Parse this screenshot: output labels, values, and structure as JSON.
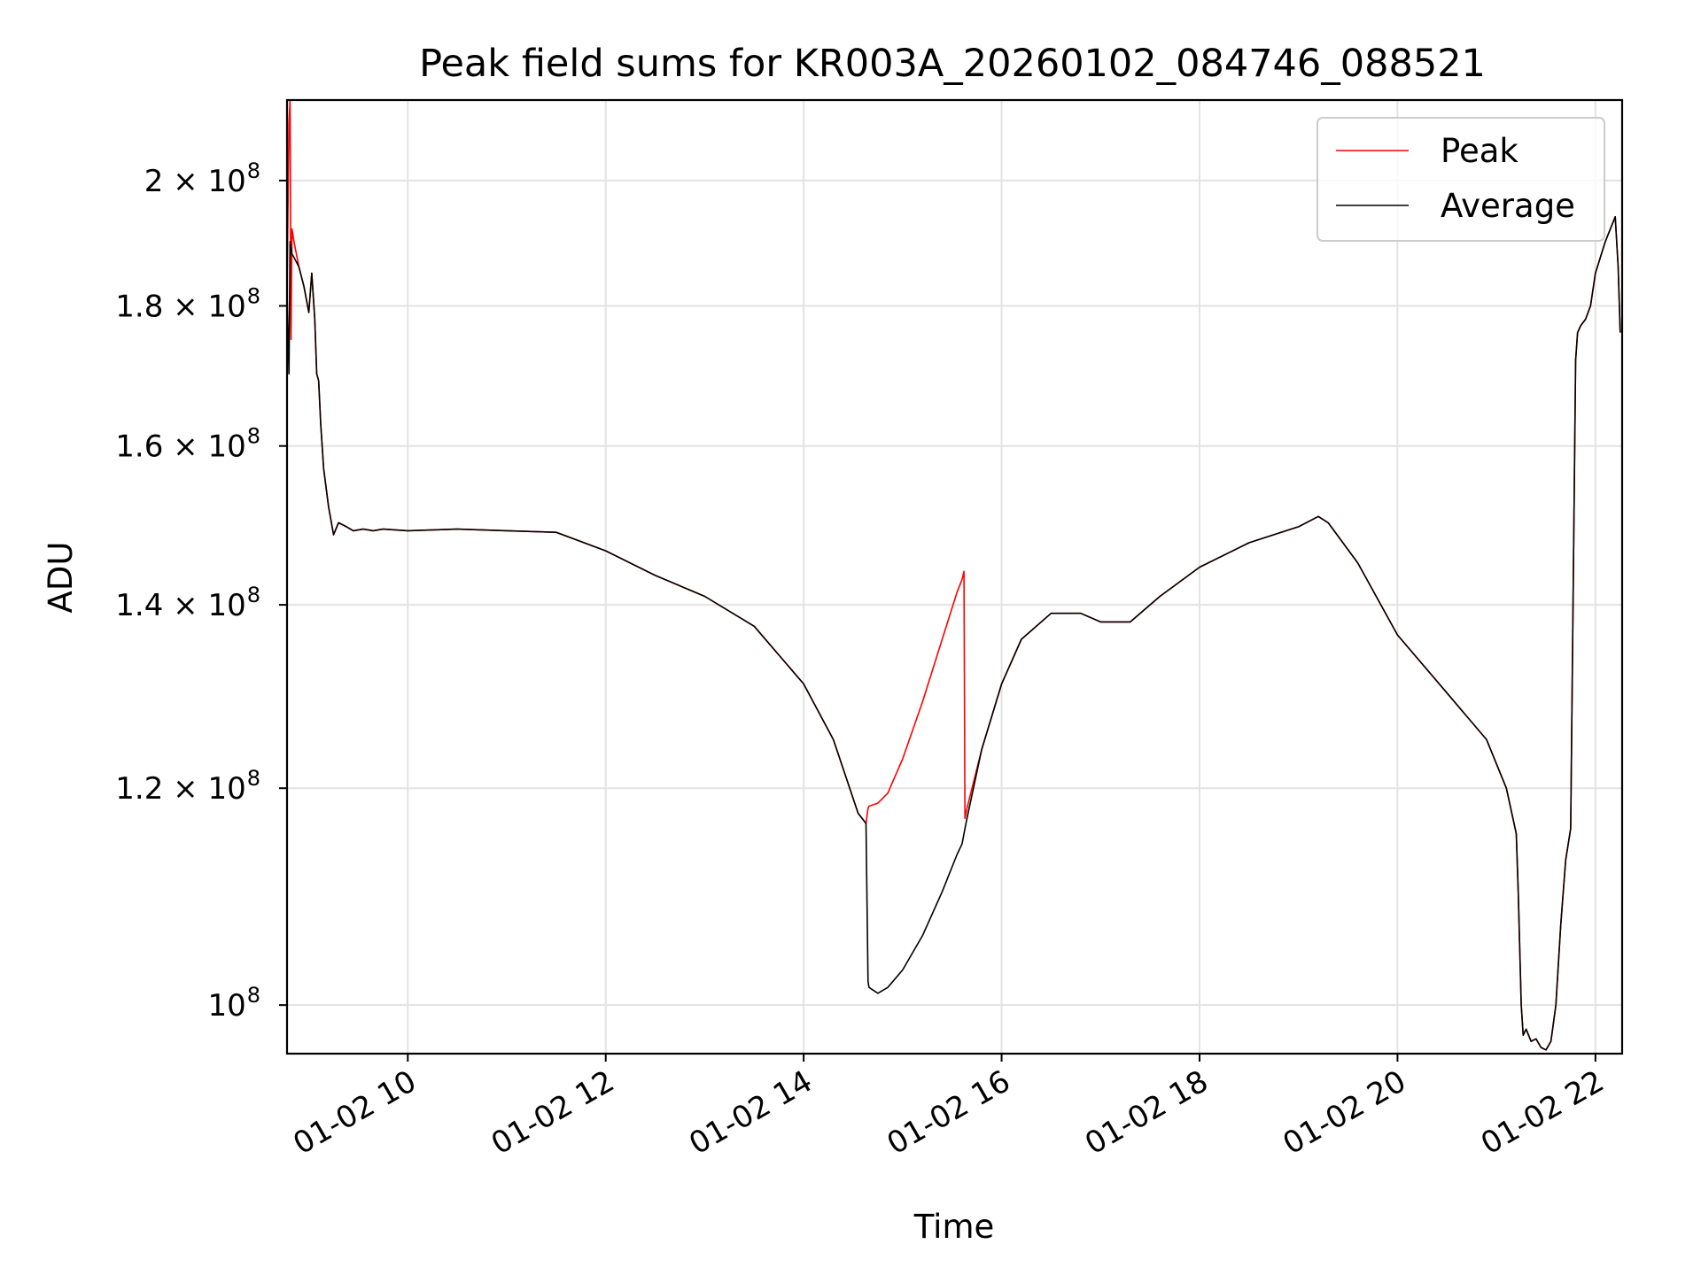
{
  "chart_data": {
    "type": "line",
    "title": "Peak field sums for KR003A_20260102_084746_088521",
    "xlabel": "Time",
    "ylabel": "ADU",
    "x_unit": "hour of 2026-01-02",
    "xlim": [
      8.78,
      22.27
    ],
    "ylim": [
      96000000.0,
      214000000.0
    ],
    "y_scale": "log",
    "grid": true,
    "legend_position": "top-right",
    "x_ticks": [
      {
        "value": 10,
        "label": "01-02 10"
      },
      {
        "value": 12,
        "label": "01-02 12"
      },
      {
        "value": 14,
        "label": "01-02 14"
      },
      {
        "value": 16,
        "label": "01-02 16"
      },
      {
        "value": 18,
        "label": "01-02 18"
      },
      {
        "value": 20,
        "label": "01-02 20"
      },
      {
        "value": 22,
        "label": "01-02 22"
      }
    ],
    "y_ticks": [
      {
        "value": 100000000,
        "mant": "10",
        "exp": "8"
      },
      {
        "value": 120000000,
        "mant": "1.2 × 10",
        "exp": "8"
      },
      {
        "value": 140000000,
        "mant": "1.4 × 10",
        "exp": "8"
      },
      {
        "value": 160000000,
        "mant": "1.6 × 10",
        "exp": "8"
      },
      {
        "value": 180000000,
        "mant": "1.8 × 10",
        "exp": "8"
      },
      {
        "value": 200000000,
        "mant": "2 × 10",
        "exp": "8"
      }
    ],
    "series": [
      {
        "name": "Peak",
        "color": "#ff0000",
        "x": [
          8.78,
          8.8,
          8.81,
          8.82,
          8.83,
          8.85,
          8.9,
          8.95,
          9.0,
          9.03,
          9.06,
          9.08,
          9.1,
          9.12,
          9.15,
          9.2,
          9.25,
          9.3,
          9.38,
          9.45,
          9.55,
          9.65,
          9.75,
          10.0,
          10.5,
          11.0,
          11.5,
          12.0,
          12.5,
          13.0,
          13.5,
          14.0,
          14.3,
          14.55,
          14.63,
          14.65,
          14.66,
          14.75,
          14.85,
          15.0,
          15.2,
          15.4,
          15.55,
          15.6,
          15.62,
          15.63,
          15.65,
          15.8,
          16.0,
          16.2,
          16.5,
          16.8,
          17.0,
          17.3,
          17.6,
          18.0,
          18.5,
          19.0,
          19.2,
          19.3,
          19.6,
          20.0,
          20.5,
          20.9,
          21.1,
          21.2,
          21.22,
          21.25,
          21.27,
          21.3,
          21.35,
          21.4,
          21.45,
          21.5,
          21.55,
          21.6,
          21.65,
          21.7,
          21.75,
          21.8,
          21.82,
          21.85,
          21.9,
          21.95,
          22.0,
          22.1,
          22.2,
          22.23,
          22.25
        ],
        "y": [
          182000000,
          210000000,
          214000000,
          175000000,
          192000000,
          190000000,
          186000000,
          183000000,
          179000000,
          185000000,
          178000000,
          170000000,
          169000000,
          163000000,
          157000000,
          152000000,
          148500000,
          150000000,
          149500000,
          149000000,
          149200000,
          149000000,
          149200000,
          149000000,
          149200000,
          149000000,
          148800000,
          146500000,
          143500000,
          141000000,
          137500000,
          131000000,
          125000000,
          117500000,
          116500000,
          118000000,
          118200000,
          118500000,
          119500000,
          123000000,
          129000000,
          136000000,
          141500000,
          143000000,
          144000000,
          117000000,
          118000000,
          124000000,
          131000000,
          136000000,
          139000000,
          139000000,
          138000000,
          138000000,
          141000000,
          144500000,
          147500000,
          149500000,
          150800000,
          150000000,
          145000000,
          136500000,
          130000000,
          125000000,
          120000000,
          115500000,
          110000000,
          100000000,
          97500000,
          98000000,
          97000000,
          97200000,
          96500000,
          96300000,
          97000000,
          100000000,
          107000000,
          113000000,
          116000000,
          172000000,
          176000000,
          177000000,
          178000000,
          180000000,
          185000000,
          190000000,
          194000000,
          186000000,
          176000000
        ]
      },
      {
        "name": "Average",
        "color": "#000000",
        "x": [
          8.78,
          8.8,
          8.81,
          8.82,
          8.83,
          8.85,
          8.9,
          8.95,
          9.0,
          9.03,
          9.06,
          9.08,
          9.1,
          9.12,
          9.15,
          9.2,
          9.25,
          9.3,
          9.38,
          9.45,
          9.55,
          9.65,
          9.75,
          10.0,
          10.5,
          11.0,
          11.5,
          12.0,
          12.5,
          13.0,
          13.5,
          14.0,
          14.3,
          14.55,
          14.63,
          14.65,
          14.66,
          14.75,
          14.85,
          15.0,
          15.2,
          15.4,
          15.55,
          15.6,
          15.62,
          15.63,
          15.65,
          15.8,
          16.0,
          16.2,
          16.5,
          16.8,
          17.0,
          17.3,
          17.6,
          18.0,
          18.5,
          19.0,
          19.2,
          19.3,
          19.6,
          20.0,
          20.5,
          20.9,
          21.1,
          21.2,
          21.22,
          21.25,
          21.27,
          21.3,
          21.35,
          21.4,
          21.45,
          21.5,
          21.55,
          21.6,
          21.65,
          21.7,
          21.75,
          21.8,
          21.82,
          21.85,
          21.9,
          21.95,
          22.0,
          22.1,
          22.2,
          22.23,
          22.25
        ],
        "y": [
          182000000,
          170000000,
          190000000,
          189000000,
          188000000,
          187500000,
          186000000,
          183000000,
          179000000,
          185000000,
          178000000,
          170000000,
          169000000,
          163000000,
          157000000,
          152000000,
          148500000,
          150000000,
          149500000,
          149000000,
          149200000,
          149000000,
          149200000,
          149000000,
          149200000,
          149000000,
          148800000,
          146500000,
          143500000,
          141000000,
          137500000,
          131000000,
          125000000,
          117500000,
          116500000,
          102000000,
          101500000,
          101000000,
          101500000,
          103000000,
          106000000,
          110000000,
          113500000,
          114500000,
          115500000,
          116000000,
          117000000,
          124000000,
          131000000,
          136000000,
          139000000,
          139000000,
          138000000,
          138000000,
          141000000,
          144500000,
          147500000,
          149500000,
          150800000,
          150000000,
          145000000,
          136500000,
          130000000,
          125000000,
          120000000,
          115500000,
          110000000,
          100000000,
          97500000,
          98000000,
          97000000,
          97200000,
          96500000,
          96300000,
          97000000,
          100000000,
          107000000,
          113000000,
          116000000,
          172000000,
          176000000,
          177000000,
          178000000,
          180000000,
          185000000,
          190000000,
          194000000,
          186000000,
          176000000
        ]
      }
    ]
  }
}
